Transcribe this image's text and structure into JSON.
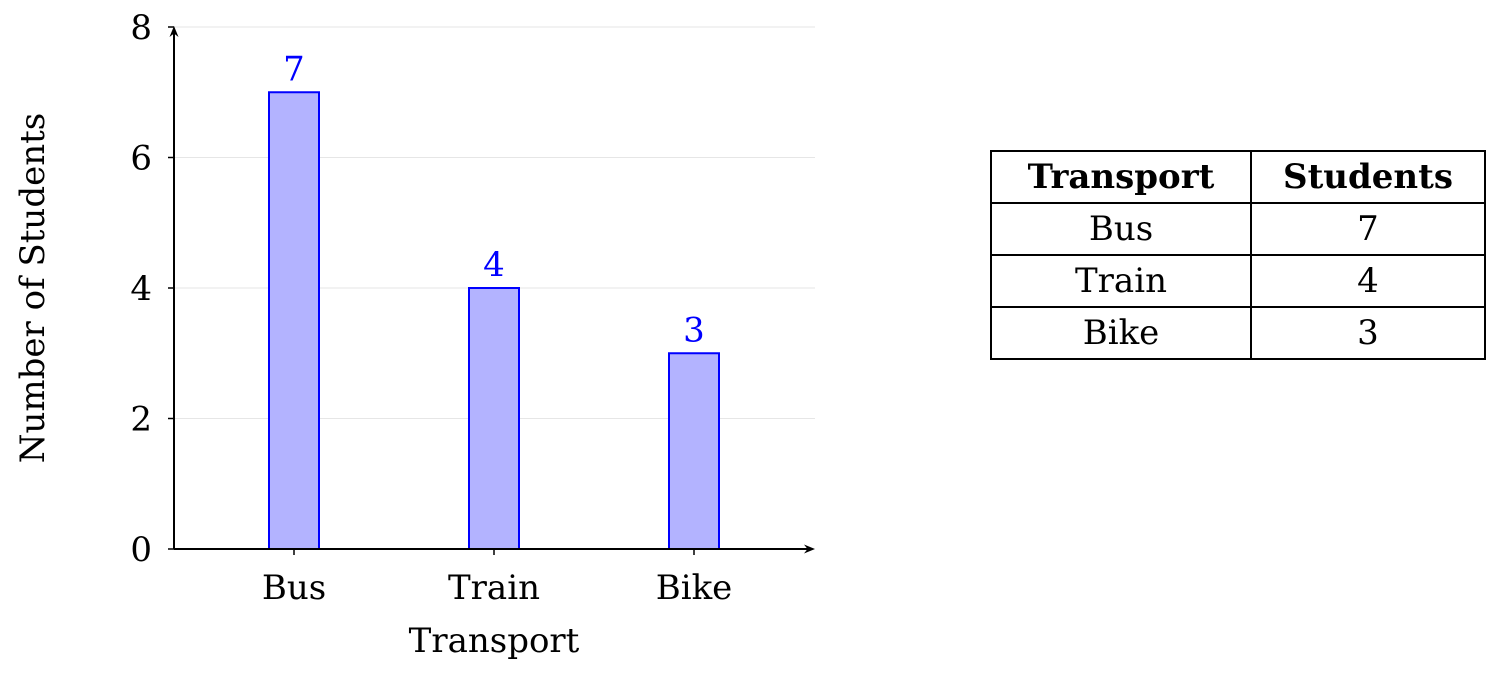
{
  "chart_data": {
    "type": "bar",
    "categories": [
      "Bus",
      "Train",
      "Bike"
    ],
    "values": [
      7,
      4,
      3
    ],
    "data_labels": [
      "7",
      "4",
      "3"
    ],
    "xlabel": "Transport",
    "ylabel": "Number of Students",
    "ylim": [
      0,
      8
    ],
    "y_ticks": [
      0,
      2,
      4,
      6,
      8
    ],
    "y_tick_labels": [
      "0",
      "2",
      "4",
      "6",
      "8"
    ],
    "grid": "horizontal",
    "legend": "none",
    "colors": {
      "bar_fill": "#b3b3ff",
      "bar_stroke": "#0000ff",
      "data_label": "#0000ff",
      "grid": "#e6e6e6",
      "axis": "#000000"
    }
  },
  "table": {
    "headers": [
      "Transport",
      "Students"
    ],
    "rows": [
      [
        "Bus",
        "7"
      ],
      [
        "Train",
        "4"
      ],
      [
        "Bike",
        "3"
      ]
    ]
  }
}
